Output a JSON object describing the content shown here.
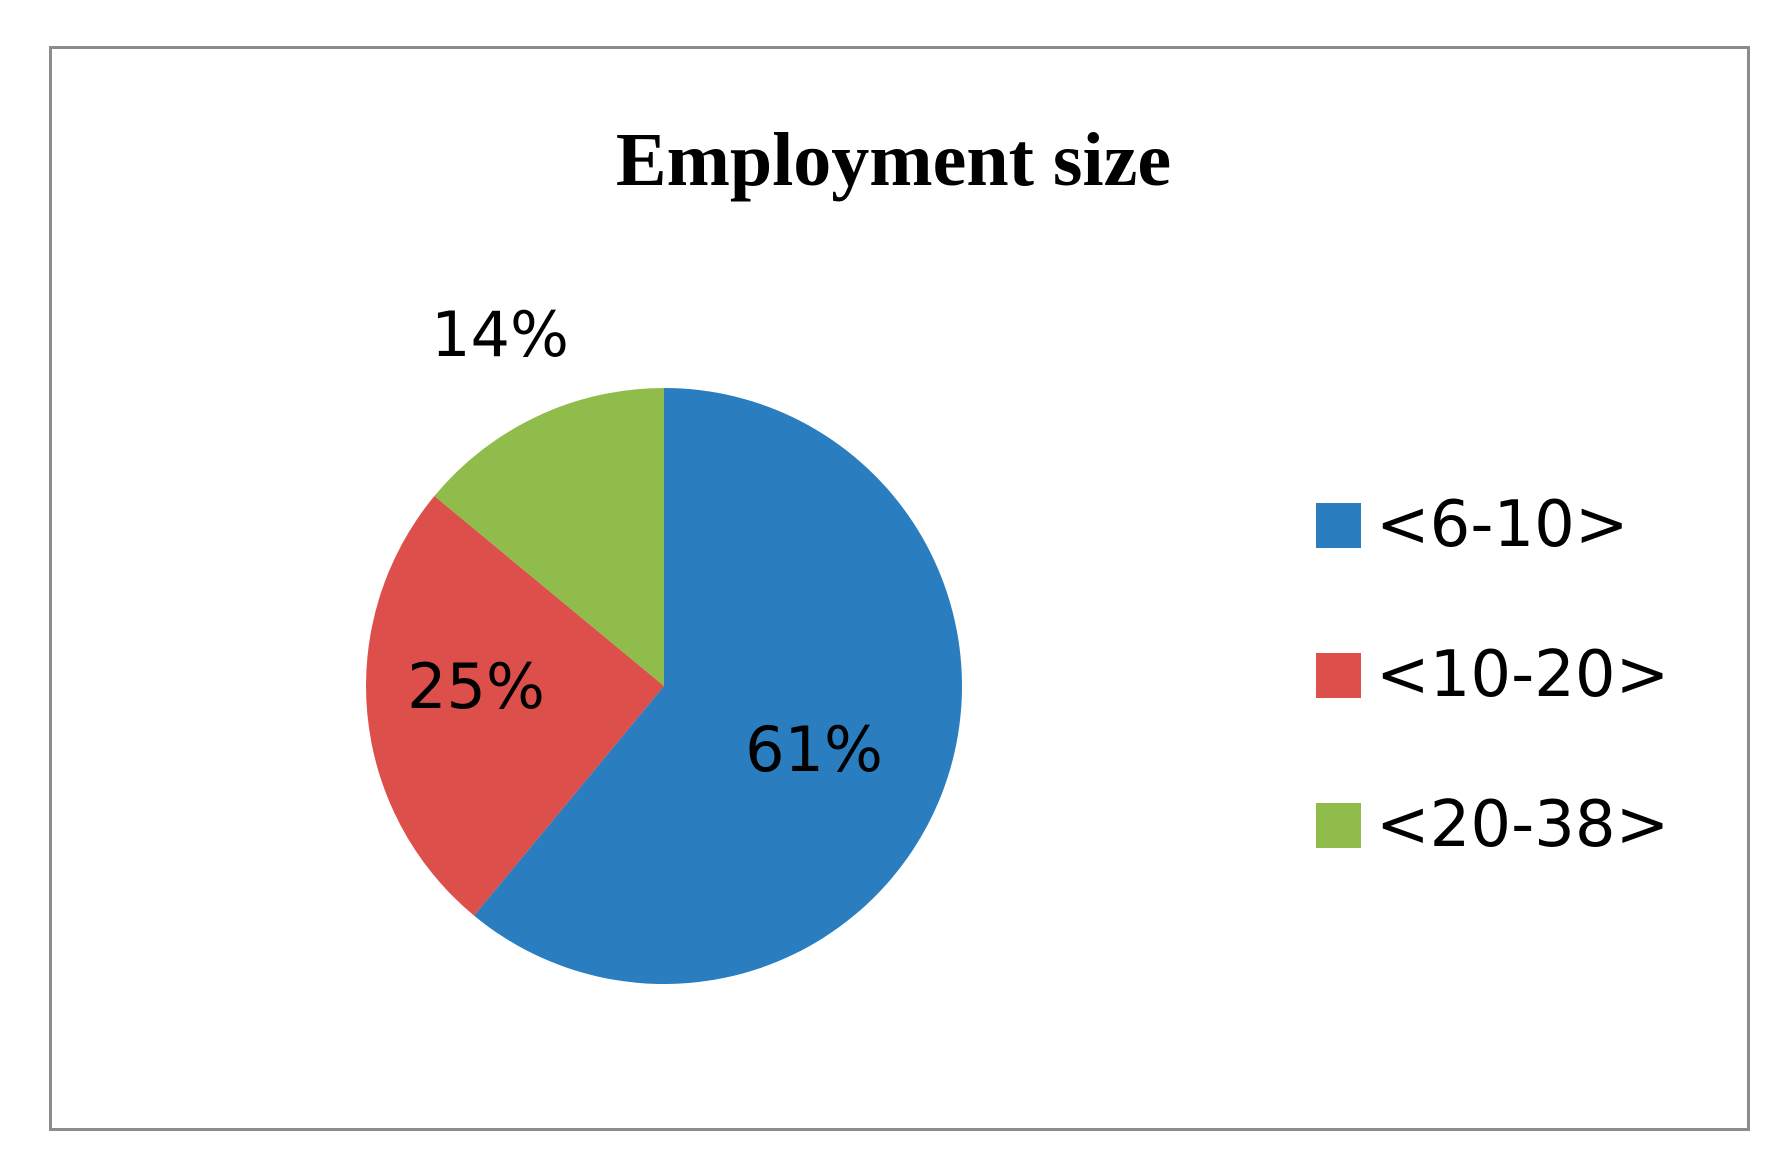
{
  "chart_data": {
    "type": "pie",
    "title": "Employment size",
    "categories": [
      "<6-10>",
      "<10-20>",
      "<20-38>"
    ],
    "values": [
      61,
      25,
      14
    ],
    "data_labels": [
      "61%",
      "25%",
      "14%"
    ],
    "colors": [
      "#2a7ebf",
      "#dc4f4a",
      "#8fbc4a"
    ],
    "legend_position": "right",
    "start_angle": "12 o'clock",
    "direction": "clockwise"
  }
}
